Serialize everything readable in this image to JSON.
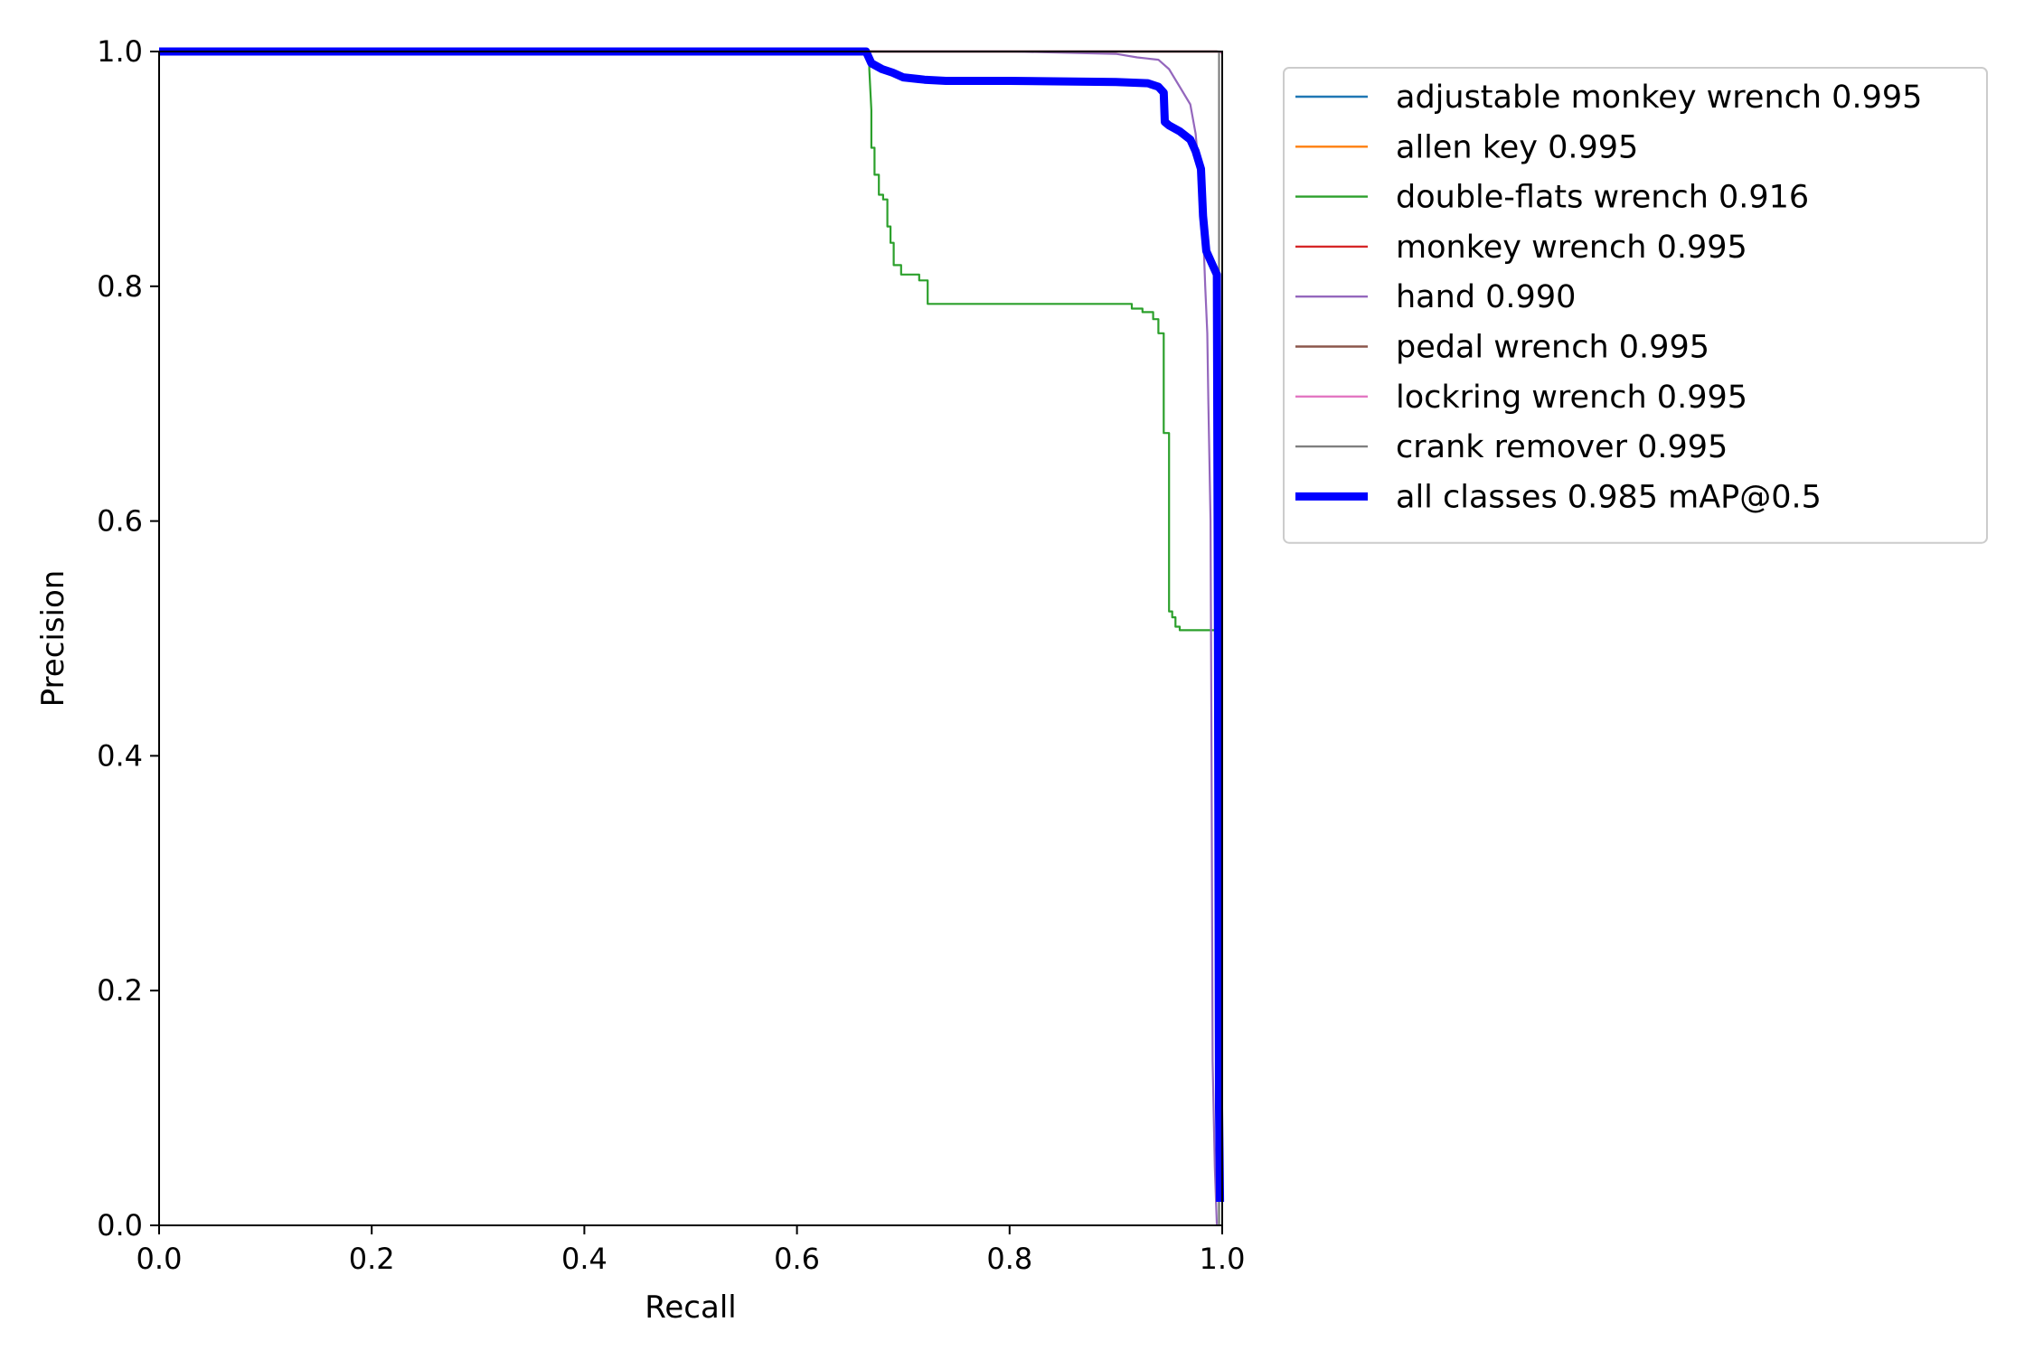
{
  "chart_data": {
    "type": "line",
    "title": "",
    "xlabel": "Recall",
    "ylabel": "Precision",
    "xlim": [
      0.0,
      1.0
    ],
    "ylim": [
      0.0,
      1.0
    ],
    "xticks": [
      "0.0",
      "0.2",
      "0.4",
      "0.6",
      "0.8",
      "1.0"
    ],
    "yticks": [
      "0.0",
      "0.2",
      "0.4",
      "0.6",
      "0.8",
      "1.0"
    ],
    "grid": false,
    "legend_position": "outside-top-right",
    "series": [
      {
        "name": "adjustable monkey wrench 0.995",
        "color": "#1f77b4",
        "width": "thin",
        "points": [
          [
            0.0,
            1.0
          ],
          [
            0.995,
            1.0
          ],
          [
            1.0,
            0.999
          ]
        ]
      },
      {
        "name": "allen key 0.995",
        "color": "#ff7f0e",
        "width": "thin",
        "points": [
          [
            0.0,
            1.0
          ],
          [
            0.995,
            1.0
          ],
          [
            1.0,
            0.999
          ]
        ]
      },
      {
        "name": "double-flats wrench 0.916",
        "color": "#2ca02c",
        "width": "thin",
        "points": [
          [
            0.0,
            1.0
          ],
          [
            0.668,
            1.0
          ],
          [
            0.668,
            0.985
          ],
          [
            0.67,
            0.95
          ],
          [
            0.67,
            0.918
          ],
          [
            0.673,
            0.918
          ],
          [
            0.673,
            0.895
          ],
          [
            0.677,
            0.895
          ],
          [
            0.677,
            0.878
          ],
          [
            0.681,
            0.878
          ],
          [
            0.681,
            0.874
          ],
          [
            0.685,
            0.874
          ],
          [
            0.685,
            0.851
          ],
          [
            0.688,
            0.851
          ],
          [
            0.688,
            0.837
          ],
          [
            0.691,
            0.837
          ],
          [
            0.691,
            0.818
          ],
          [
            0.698,
            0.818
          ],
          [
            0.698,
            0.81
          ],
          [
            0.715,
            0.81
          ],
          [
            0.715,
            0.805
          ],
          [
            0.723,
            0.805
          ],
          [
            0.723,
            0.785
          ],
          [
            0.915,
            0.785
          ],
          [
            0.915,
            0.781
          ],
          [
            0.925,
            0.781
          ],
          [
            0.925,
            0.778
          ],
          [
            0.935,
            0.778
          ],
          [
            0.935,
            0.772
          ],
          [
            0.94,
            0.772
          ],
          [
            0.94,
            0.76
          ],
          [
            0.945,
            0.76
          ],
          [
            0.945,
            0.675
          ],
          [
            0.95,
            0.675
          ],
          [
            0.95,
            0.523
          ],
          [
            0.953,
            0.523
          ],
          [
            0.953,
            0.518
          ],
          [
            0.956,
            0.518
          ],
          [
            0.956,
            0.51
          ],
          [
            0.96,
            0.51
          ],
          [
            0.96,
            0.507
          ],
          [
            0.997,
            0.507
          ],
          [
            0.997,
            0.0
          ]
        ]
      },
      {
        "name": "monkey wrench 0.995",
        "color": "#d62728",
        "width": "thin",
        "points": [
          [
            0.0,
            1.0
          ],
          [
            0.995,
            1.0
          ],
          [
            1.0,
            0.999
          ]
        ]
      },
      {
        "name": "hand 0.990",
        "color": "#9467bd",
        "width": "thin",
        "points": [
          [
            0.0,
            1.0
          ],
          [
            0.8,
            1.0
          ],
          [
            0.85,
            0.999
          ],
          [
            0.9,
            0.998
          ],
          [
            0.92,
            0.995
          ],
          [
            0.94,
            0.993
          ],
          [
            0.95,
            0.985
          ],
          [
            0.96,
            0.97
          ],
          [
            0.97,
            0.955
          ],
          [
            0.975,
            0.93
          ],
          [
            0.978,
            0.9
          ],
          [
            0.982,
            0.85
          ],
          [
            0.984,
            0.8
          ],
          [
            0.986,
            0.76
          ],
          [
            0.987,
            0.7
          ],
          [
            0.989,
            0.6
          ],
          [
            0.99,
            0.4
          ],
          [
            0.991,
            0.14
          ],
          [
            0.993,
            0.05
          ],
          [
            0.995,
            0.0
          ]
        ]
      },
      {
        "name": "pedal wrench 0.995",
        "color": "#8c564b",
        "width": "thin",
        "points": [
          [
            0.0,
            1.0
          ],
          [
            0.995,
            1.0
          ],
          [
            1.0,
            0.999
          ]
        ]
      },
      {
        "name": "lockring wrench 0.995",
        "color": "#e377c2",
        "width": "thin",
        "points": [
          [
            0.0,
            1.0
          ],
          [
            0.995,
            1.0
          ],
          [
            1.0,
            0.999
          ]
        ]
      },
      {
        "name": "crank remover 0.995",
        "color": "#7f7f7f",
        "width": "thin",
        "points": [
          [
            0.0,
            1.0
          ],
          [
            0.997,
            1.0
          ],
          [
            0.997,
            0.0
          ]
        ]
      },
      {
        "name": "all classes 0.985 mAP@0.5",
        "color": "#0000ff",
        "width": "thick",
        "points": [
          [
            0.0,
            1.0
          ],
          [
            0.665,
            1.0
          ],
          [
            0.67,
            0.99
          ],
          [
            0.68,
            0.985
          ],
          [
            0.69,
            0.982
          ],
          [
            0.7,
            0.978
          ],
          [
            0.72,
            0.976
          ],
          [
            0.74,
            0.975
          ],
          [
            0.8,
            0.975
          ],
          [
            0.9,
            0.974
          ],
          [
            0.93,
            0.973
          ],
          [
            0.94,
            0.97
          ],
          [
            0.945,
            0.965
          ],
          [
            0.946,
            0.94
          ],
          [
            0.95,
            0.937
          ],
          [
            0.96,
            0.932
          ],
          [
            0.97,
            0.925
          ],
          [
            0.975,
            0.915
          ],
          [
            0.98,
            0.9
          ],
          [
            0.982,
            0.86
          ],
          [
            0.985,
            0.83
          ],
          [
            0.99,
            0.82
          ],
          [
            0.995,
            0.81
          ],
          [
            0.996,
            0.5
          ],
          [
            0.997,
            0.1
          ],
          [
            0.998,
            0.02
          ]
        ]
      }
    ]
  }
}
